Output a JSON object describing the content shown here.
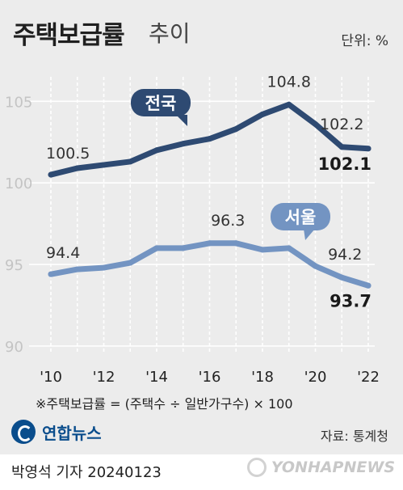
{
  "header": {
    "title_bold": "주택보급률",
    "title_light": "추이",
    "unit": "단위: %"
  },
  "footnote": "※주택보급률 = (주택수 ÷ 일반가구수) × 100",
  "source": "자료: 통계청",
  "logo_text": "연합뉴스",
  "byline": "박영석 기자  20240123",
  "watermark": "YONHAPNEWS",
  "colors": {
    "national": "#2e4a72",
    "seoul": "#7394c2",
    "grid": "#ffffff",
    "background": "#ececec"
  },
  "chart_data": {
    "type": "line",
    "x": [
      2010,
      2011,
      2012,
      2013,
      2014,
      2015,
      2016,
      2017,
      2018,
      2019,
      2020,
      2021,
      2022
    ],
    "x_tick_labels": [
      "'10",
      "'12",
      "'14",
      "'16",
      "'18",
      "'20",
      "'22"
    ],
    "y_ticks": [
      90,
      95,
      100,
      105
    ],
    "ylim": [
      89.5,
      106.5
    ],
    "grid": "vertical dashed",
    "series": [
      {
        "name": "전국",
        "values": [
          100.5,
          100.9,
          101.1,
          101.3,
          102.0,
          102.4,
          102.7,
          103.3,
          104.2,
          104.8,
          103.6,
          102.2,
          102.1
        ],
        "labels": [
          {
            "index": 0,
            "text": "100.5",
            "bold": false
          },
          {
            "index": 9,
            "text": "104.8",
            "bold": false
          },
          {
            "index": 11,
            "text": "102.2",
            "bold": false
          },
          {
            "index": 12,
            "text": "102.1",
            "bold": true
          }
        ]
      },
      {
        "name": "서울",
        "values": [
          94.4,
          94.7,
          94.8,
          95.1,
          96.0,
          96.0,
          96.3,
          96.3,
          95.9,
          96.0,
          94.9,
          94.2,
          93.7
        ],
        "labels": [
          {
            "index": 0,
            "text": "94.4",
            "bold": false
          },
          {
            "index": 7,
            "text": "96.3",
            "bold": false
          },
          {
            "index": 11,
            "text": "94.2",
            "bold": false
          },
          {
            "index": 12,
            "text": "93.7",
            "bold": true
          }
        ]
      }
    ]
  }
}
